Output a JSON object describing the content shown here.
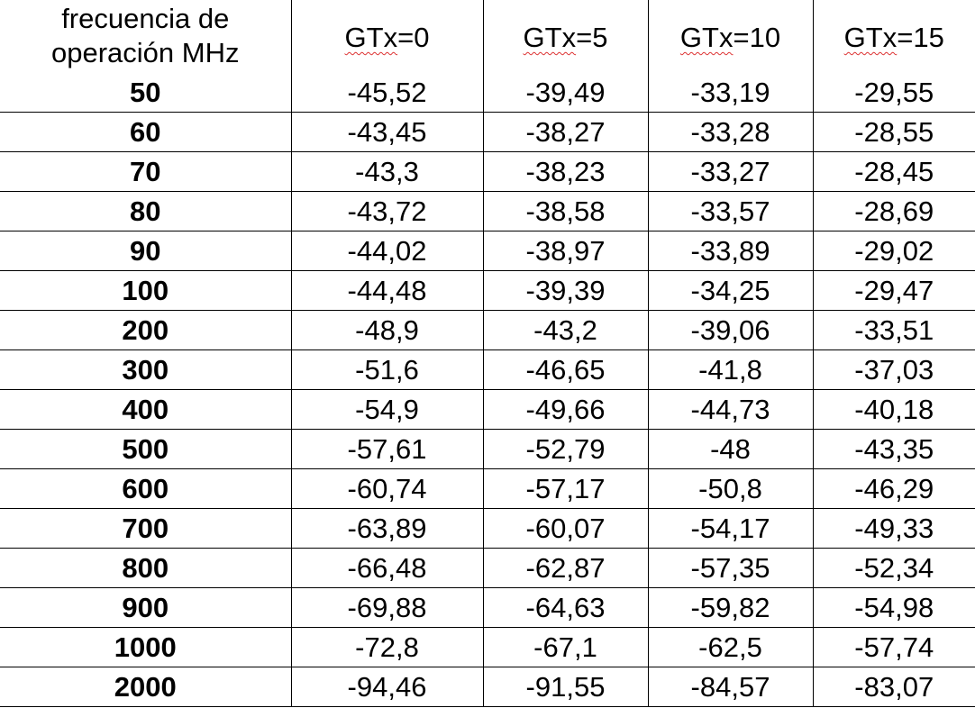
{
  "table": {
    "header": {
      "freq_line1": "frecuencia de",
      "freq_line2": "operación MHz",
      "columns": [
        {
          "prefix": "GTx",
          "suffix": "=0"
        },
        {
          "prefix": "GTx",
          "suffix": "=5"
        },
        {
          "prefix": "GTx",
          "suffix": "=10"
        },
        {
          "prefix": "GTx",
          "suffix": "=15"
        }
      ]
    },
    "rows": [
      [
        "50",
        "-45,52",
        "-39,49",
        "-33,19",
        "-29,55"
      ],
      [
        "60",
        "-43,45",
        "-38,27",
        "-33,28",
        "-28,55"
      ],
      [
        "70",
        "-43,3",
        "-38,23",
        "-33,27",
        "-28,45"
      ],
      [
        "80",
        "-43,72",
        "-38,58",
        "-33,57",
        "-28,69"
      ],
      [
        "90",
        "-44,02",
        "-38,97",
        "-33,89",
        "-29,02"
      ],
      [
        "100",
        "-44,48",
        "-39,39",
        "-34,25",
        "-29,47"
      ],
      [
        "200",
        "-48,9",
        "-43,2",
        "-39,06",
        "-33,51"
      ],
      [
        "300",
        "-51,6",
        "-46,65",
        "-41,8",
        "-37,03"
      ],
      [
        "400",
        "-54,9",
        "-49,66",
        "-44,73",
        "-40,18"
      ],
      [
        "500",
        "-57,61",
        "-52,79",
        "-48",
        "-43,35"
      ],
      [
        "600",
        "-60,74",
        "-57,17",
        "-50,8",
        "-46,29"
      ],
      [
        "700",
        "-63,89",
        "-60,07",
        "-54,17",
        "-49,33"
      ],
      [
        "800",
        "-66,48",
        "-62,87",
        "-57,35",
        "-52,34"
      ],
      [
        "900",
        "-69,88",
        "-64,63",
        "-59,82",
        "-54,98"
      ],
      [
        "1000",
        "-72,8",
        "-67,1",
        "-62,5",
        "-57,74"
      ],
      [
        "2000",
        "-94,46",
        "-91,55",
        "-84,57",
        "-83,07"
      ]
    ]
  }
}
